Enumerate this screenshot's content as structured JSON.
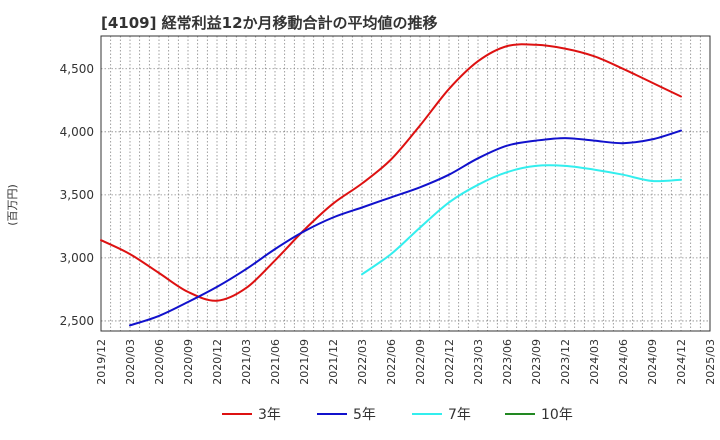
{
  "chart_data": {
    "type": "line",
    "title": "[4109]  経常利益12か月移動合計の平均値の推移",
    "ylabel": "(百万円)",
    "xlabel": "",
    "ylim": [
      2420,
      4760
    ],
    "y_ticks": [
      2500,
      3000,
      3500,
      4000,
      4500
    ],
    "y_tick_labels": [
      "2,500",
      "3,000",
      "3,500",
      "4,000",
      "4,500"
    ],
    "x_ticks": [
      "2019/12",
      "2020/03",
      "2020/06",
      "2020/09",
      "2020/12",
      "2021/03",
      "2021/06",
      "2021/09",
      "2021/12",
      "2022/03",
      "2022/06",
      "2022/09",
      "2022/12",
      "2023/03",
      "2023/06",
      "2023/09",
      "2023/12",
      "2024/03",
      "2024/06",
      "2024/09",
      "2024/12",
      "2025/03"
    ],
    "grid": true,
    "legend_position": "bottom",
    "series": [
      {
        "name": "3年",
        "color": "#dd1111",
        "values": [
          [
            "2019/12",
            3140
          ],
          [
            "2020/03",
            3030
          ],
          [
            "2020/06",
            2880
          ],
          [
            "2020/09",
            2730
          ],
          [
            "2020/12",
            2660
          ],
          [
            "2021/03",
            2760
          ],
          [
            "2021/06",
            2980
          ],
          [
            "2021/09",
            3220
          ],
          [
            "2021/12",
            3430
          ],
          [
            "2022/03",
            3590
          ],
          [
            "2022/06",
            3780
          ],
          [
            "2022/09",
            4050
          ],
          [
            "2022/12",
            4340
          ],
          [
            "2023/03",
            4560
          ],
          [
            "2023/06",
            4680
          ],
          [
            "2023/09",
            4690
          ],
          [
            "2023/12",
            4660
          ],
          [
            "2024/03",
            4600
          ],
          [
            "2024/06",
            4500
          ],
          [
            "2024/09",
            4390
          ],
          [
            "2024/12",
            4280
          ]
        ]
      },
      {
        "name": "5年",
        "color": "#1111cc",
        "values": [
          [
            "2020/03",
            2465
          ],
          [
            "2020/06",
            2540
          ],
          [
            "2020/09",
            2650
          ],
          [
            "2020/12",
            2770
          ],
          [
            "2021/03",
            2910
          ],
          [
            "2021/06",
            3070
          ],
          [
            "2021/09",
            3210
          ],
          [
            "2021/12",
            3320
          ],
          [
            "2022/03",
            3400
          ],
          [
            "2022/06",
            3480
          ],
          [
            "2022/09",
            3560
          ],
          [
            "2022/12",
            3660
          ],
          [
            "2023/03",
            3790
          ],
          [
            "2023/06",
            3890
          ],
          [
            "2023/09",
            3930
          ],
          [
            "2023/12",
            3950
          ],
          [
            "2024/03",
            3930
          ],
          [
            "2024/06",
            3910
          ],
          [
            "2024/09",
            3940
          ],
          [
            "2024/12",
            4010
          ]
        ]
      },
      {
        "name": "7年",
        "color": "#33eeee",
        "values": [
          [
            "2022/03",
            2870
          ],
          [
            "2022/06",
            3030
          ],
          [
            "2022/09",
            3240
          ],
          [
            "2022/12",
            3440
          ],
          [
            "2023/03",
            3580
          ],
          [
            "2023/06",
            3680
          ],
          [
            "2023/09",
            3730
          ],
          [
            "2023/12",
            3730
          ],
          [
            "2024/03",
            3700
          ],
          [
            "2024/06",
            3660
          ],
          [
            "2024/09",
            3610
          ],
          [
            "2024/12",
            3620
          ]
        ]
      },
      {
        "name": "10年",
        "color": "#228822",
        "values": []
      }
    ]
  }
}
